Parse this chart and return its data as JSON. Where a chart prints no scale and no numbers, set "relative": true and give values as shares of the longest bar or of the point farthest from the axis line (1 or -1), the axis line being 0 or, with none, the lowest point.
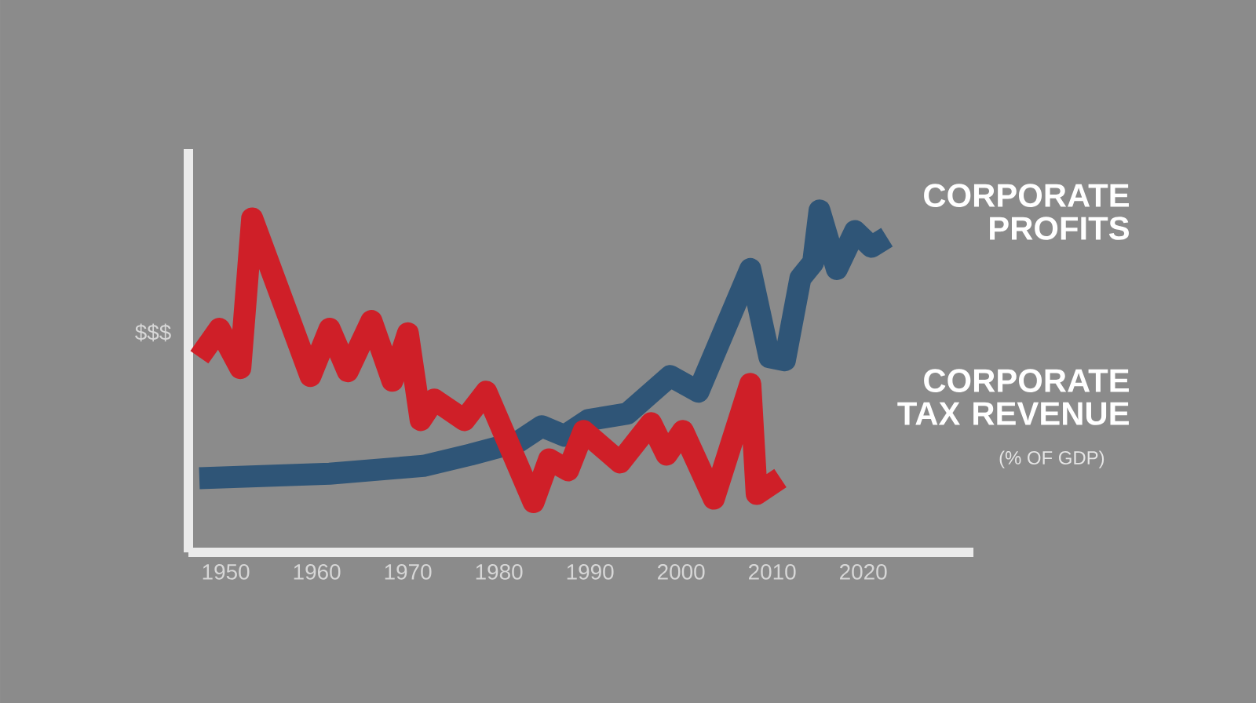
{
  "chart_data": {
    "type": "line",
    "relative": true,
    "ylabel": "$$$",
    "xlim": [
      1945.9,
      2032.1
    ],
    "xticks": [
      1950,
      1960,
      1970,
      1980,
      1990,
      2000,
      2010,
      2020
    ],
    "series": [
      {
        "name": "CORPORATE PROFITS",
        "color": "#2f5577",
        "x": [
          1947.1,
          1961.4,
          1971.7,
          1976.9,
          1982.1,
          1984.7,
          1987.2,
          1989.8,
          1994.1,
          1998.8,
          2001.9,
          2007.6,
          2009.7,
          2011.4,
          2013.1,
          2014.5,
          2015.2,
          2017.1,
          2019.1,
          2020.9,
          2022.6
        ],
        "values": [
          0.217,
          0.23,
          0.253,
          0.286,
          0.323,
          0.369,
          0.341,
          0.387,
          0.406,
          0.516,
          0.47,
          0.829,
          0.571,
          0.562,
          0.802,
          0.848,
          1,
          0.829,
          0.94,
          0.894,
          0.922
        ]
      },
      {
        "name": "CORPORATE TAX REVENUE",
        "color": "#cf1f28",
        "x": [
          1947.1,
          1949.3,
          1951.6,
          1952.9,
          1959.3,
          1961.4,
          1963.4,
          1966.0,
          1968.3,
          1970.0,
          1971.4,
          1972.9,
          1976.2,
          1978.6,
          1983.8,
          1985.5,
          1987.6,
          1989.3,
          1993.3,
          1996.7,
          1998.4,
          2000.2,
          2003.6,
          2007.6,
          2008.3,
          2010.9
        ],
        "values": [
          0.571,
          0.654,
          0.539,
          0.977,
          0.516,
          0.654,
          0.53,
          0.677,
          0.502,
          0.641,
          0.387,
          0.447,
          0.387,
          0.47,
          0.147,
          0.272,
          0.24,
          0.355,
          0.263,
          0.378,
          0.286,
          0.355,
          0.157,
          0.493,
          0.171,
          0.217
        ]
      }
    ],
    "annotations": [
      "(% OF GDP)"
    ]
  }
}
